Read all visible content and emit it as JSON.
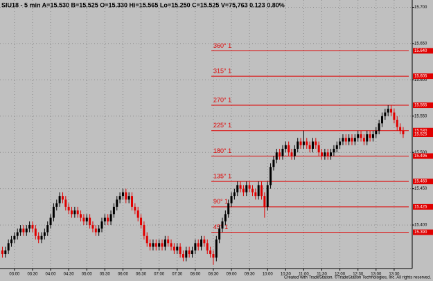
{
  "chart_data": {
    "type": "candlestick",
    "title": "SIU18 - 5 min  A=15.530  B=15.525  O=15.330  Hi=15.565  Lo=15.250  C=15.525  V=75,763  0.123  0.80%",
    "footer": "Created with TradeStation. ©TradeStation Technologies, Inc. All rights reserved.",
    "up_color": "#000000",
    "down_color": "#e00000",
    "level_color": "#e00000",
    "grid": true,
    "xlim": [
      156,
      840
    ],
    "ylim": [
      15.34,
      15.71
    ],
    "xticks": [
      {
        "value": 180,
        "label": "03:00"
      },
      {
        "value": 210,
        "label": "03:30"
      },
      {
        "value": 240,
        "label": "04:00"
      },
      {
        "value": 270,
        "label": "04:30"
      },
      {
        "value": 300,
        "label": "05:00"
      },
      {
        "value": 330,
        "label": "05:30"
      },
      {
        "value": 360,
        "label": "06:00"
      },
      {
        "value": 390,
        "label": "06:30"
      },
      {
        "value": 420,
        "label": "07:00"
      },
      {
        "value": 450,
        "label": "07:30"
      },
      {
        "value": 480,
        "label": "08:00"
      },
      {
        "value": 510,
        "label": "08:30"
      },
      {
        "value": 540,
        "label": "09:00"
      },
      {
        "value": 570,
        "label": "09:30"
      },
      {
        "value": 600,
        "label": "10:00"
      },
      {
        "value": 630,
        "label": "10:30"
      },
      {
        "value": 660,
        "label": "11:00"
      },
      {
        "value": 690,
        "label": "11:30"
      },
      {
        "value": 720,
        "label": "12:00"
      },
      {
        "value": 750,
        "label": "12:30"
      },
      {
        "value": 780,
        "label": "13:00"
      },
      {
        "value": 810,
        "label": "13:30"
      }
    ],
    "yticks": [
      {
        "value": 15.4,
        "label": "15.400"
      },
      {
        "value": 15.45,
        "label": "15.450"
      },
      {
        "value": 15.5,
        "label": "15.500"
      },
      {
        "value": 15.55,
        "label": "15.550"
      },
      {
        "value": 15.6,
        "label": "15.600"
      },
      {
        "value": 15.65,
        "label": "15.650"
      },
      {
        "value": 15.7,
        "label": "15.700"
      }
    ],
    "levels": [
      {
        "name": "360° 1",
        "value": 15.64,
        "value_label": "15.640"
      },
      {
        "name": "315° 1",
        "value": 15.605,
        "value_label": "15.605"
      },
      {
        "name": "270° 1",
        "value": 15.565,
        "value_label": "15.565"
      },
      {
        "name": "225° 1",
        "value": 15.53,
        "value_label": "15.530"
      },
      {
        "name": "180° 1",
        "value": 15.495,
        "value_label": "15.495"
      },
      {
        "name": "135° 1",
        "value": 15.46,
        "value_label": "15.460"
      },
      {
        "name": "90° 1",
        "value": 15.425,
        "value_label": "15.425"
      },
      {
        "name": "45° 1",
        "value": 15.39,
        "value_label": "15.390"
      }
    ],
    "candles": [
      [
        160,
        15.365,
        15.37,
        15.355,
        15.36
      ],
      [
        165,
        15.36,
        15.37,
        15.355,
        15.365
      ],
      [
        170,
        15.365,
        15.38,
        15.36,
        15.375
      ],
      [
        175,
        15.375,
        15.385,
        15.37,
        15.38
      ],
      [
        180,
        15.38,
        15.39,
        15.375,
        15.385
      ],
      [
        185,
        15.385,
        15.395,
        15.38,
        15.39
      ],
      [
        190,
        15.39,
        15.4,
        15.385,
        15.395
      ],
      [
        195,
        15.395,
        15.4,
        15.385,
        15.39
      ],
      [
        200,
        15.39,
        15.4,
        15.385,
        15.395
      ],
      [
        205,
        15.395,
        15.405,
        15.39,
        15.4
      ],
      [
        210,
        15.4,
        15.405,
        15.39,
        15.395
      ],
      [
        215,
        15.395,
        15.4,
        15.38,
        15.385
      ],
      [
        220,
        15.385,
        15.39,
        15.375,
        15.38
      ],
      [
        225,
        15.38,
        15.39,
        15.375,
        15.385
      ],
      [
        230,
        15.385,
        15.395,
        15.38,
        15.39
      ],
      [
        235,
        15.39,
        15.405,
        15.385,
        15.4
      ],
      [
        240,
        15.4,
        15.415,
        15.395,
        15.41
      ],
      [
        245,
        15.41,
        15.43,
        15.405,
        15.425
      ],
      [
        250,
        15.425,
        15.435,
        15.42,
        15.43
      ],
      [
        255,
        15.43,
        15.445,
        15.425,
        15.44
      ],
      [
        260,
        15.44,
        15.445,
        15.43,
        15.435
      ],
      [
        265,
        15.435,
        15.44,
        15.42,
        15.425
      ],
      [
        270,
        15.425,
        15.43,
        15.415,
        15.42
      ],
      [
        275,
        15.42,
        15.425,
        15.41,
        15.415
      ],
      [
        280,
        15.415,
        15.425,
        15.41,
        15.42
      ],
      [
        285,
        15.42,
        15.425,
        15.41,
        15.415
      ],
      [
        290,
        15.415,
        15.42,
        15.405,
        15.41
      ],
      [
        295,
        15.41,
        15.415,
        15.4,
        15.405
      ],
      [
        300,
        15.405,
        15.415,
        15.4,
        15.41
      ],
      [
        305,
        15.41,
        15.415,
        15.395,
        15.4
      ],
      [
        310,
        15.4,
        15.405,
        15.39,
        15.395
      ],
      [
        315,
        15.395,
        15.4,
        15.385,
        15.39
      ],
      [
        320,
        15.39,
        15.4,
        15.385,
        15.395
      ],
      [
        325,
        15.395,
        15.41,
        15.39,
        15.405
      ],
      [
        330,
        15.405,
        15.415,
        15.4,
        15.41
      ],
      [
        335,
        15.41,
        15.415,
        15.4,
        15.405
      ],
      [
        340,
        15.405,
        15.42,
        15.4,
        15.415
      ],
      [
        345,
        15.415,
        15.43,
        15.41,
        15.425
      ],
      [
        350,
        15.425,
        15.44,
        15.42,
        15.435
      ],
      [
        355,
        15.435,
        15.445,
        15.43,
        15.44
      ],
      [
        360,
        15.44,
        15.45,
        15.435,
        15.445
      ],
      [
        365,
        15.445,
        15.45,
        15.43,
        15.435
      ],
      [
        370,
        15.435,
        15.445,
        15.43,
        15.44
      ],
      [
        375,
        15.44,
        15.445,
        15.42,
        15.425
      ],
      [
        380,
        15.425,
        15.43,
        15.415,
        15.42
      ],
      [
        385,
        15.42,
        15.425,
        15.405,
        15.41
      ],
      [
        390,
        15.41,
        15.415,
        15.395,
        15.4
      ],
      [
        395,
        15.4,
        15.405,
        15.38,
        15.385
      ],
      [
        400,
        15.385,
        15.39,
        15.37,
        15.375
      ],
      [
        405,
        15.375,
        15.38,
        15.365,
        15.37
      ],
      [
        410,
        15.37,
        15.38,
        15.365,
        15.375
      ],
      [
        415,
        15.375,
        15.38,
        15.365,
        15.37
      ],
      [
        420,
        15.37,
        15.38,
        15.365,
        15.375
      ],
      [
        425,
        15.375,
        15.38,
        15.365,
        15.37
      ],
      [
        430,
        15.37,
        15.385,
        15.365,
        15.38
      ],
      [
        435,
        15.38,
        15.385,
        15.37,
        15.375
      ],
      [
        440,
        15.375,
        15.38,
        15.365,
        15.37
      ],
      [
        445,
        15.37,
        15.375,
        15.36,
        15.365
      ],
      [
        450,
        15.365,
        15.375,
        15.36,
        15.37
      ],
      [
        455,
        15.37,
        15.375,
        15.355,
        15.36
      ],
      [
        460,
        15.36,
        15.365,
        15.35,
        15.355
      ],
      [
        465,
        15.355,
        15.37,
        15.35,
        15.365
      ],
      [
        470,
        15.365,
        15.37,
        15.355,
        15.36
      ],
      [
        475,
        15.36,
        15.37,
        15.355,
        15.365
      ],
      [
        480,
        15.365,
        15.38,
        15.36,
        15.375
      ],
      [
        485,
        15.375,
        15.38,
        15.365,
        15.37
      ],
      [
        490,
        15.37,
        15.385,
        15.365,
        15.38
      ],
      [
        495,
        15.38,
        15.385,
        15.37,
        15.375
      ],
      [
        500,
        15.375,
        15.38,
        15.36,
        15.365
      ],
      [
        505,
        15.365,
        15.37,
        15.355,
        15.36
      ],
      [
        510,
        15.36,
        15.365,
        15.345,
        15.355
      ],
      [
        515,
        15.355,
        15.385,
        15.35,
        15.38
      ],
      [
        520,
        15.38,
        15.4,
        15.375,
        15.395
      ],
      [
        525,
        15.395,
        15.41,
        15.39,
        15.405
      ],
      [
        530,
        15.405,
        15.42,
        15.4,
        15.415
      ],
      [
        535,
        15.415,
        15.435,
        15.41,
        15.43
      ],
      [
        540,
        15.43,
        15.445,
        15.425,
        15.44
      ],
      [
        545,
        15.44,
        15.45,
        15.435,
        15.445
      ],
      [
        550,
        15.445,
        15.46,
        15.44,
        15.455
      ],
      [
        555,
        15.455,
        15.46,
        15.445,
        15.45
      ],
      [
        560,
        15.45,
        15.455,
        15.44,
        15.445
      ],
      [
        565,
        15.445,
        15.46,
        15.44,
        15.455
      ],
      [
        570,
        15.455,
        15.46,
        15.445,
        15.45
      ],
      [
        575,
        15.45,
        15.455,
        15.44,
        15.445
      ],
      [
        580,
        15.445,
        15.45,
        15.435,
        15.44
      ],
      [
        585,
        15.44,
        15.46,
        15.435,
        15.455
      ],
      [
        590,
        15.455,
        15.46,
        15.435,
        15.44
      ],
      [
        595,
        15.44,
        15.445,
        15.41,
        15.425
      ],
      [
        600,
        15.425,
        15.46,
        15.42,
        15.455
      ],
      [
        605,
        15.455,
        15.485,
        15.45,
        15.48
      ],
      [
        610,
        15.48,
        15.495,
        15.475,
        15.49
      ],
      [
        615,
        15.49,
        15.505,
        15.485,
        15.5
      ],
      [
        620,
        15.5,
        15.505,
        15.49,
        15.495
      ],
      [
        625,
        15.495,
        15.51,
        15.49,
        15.505
      ],
      [
        630,
        15.505,
        15.515,
        15.5,
        15.51
      ],
      [
        635,
        15.51,
        15.515,
        15.495,
        15.5
      ],
      [
        640,
        15.5,
        15.505,
        15.49,
        15.495
      ],
      [
        645,
        15.495,
        15.51,
        15.49,
        15.505
      ],
      [
        650,
        15.505,
        15.52,
        15.5,
        15.515
      ],
      [
        655,
        15.515,
        15.52,
        15.505,
        15.51
      ],
      [
        660,
        15.51,
        15.53,
        15.505,
        15.515
      ],
      [
        665,
        15.515,
        15.52,
        15.505,
        15.51
      ],
      [
        670,
        15.51,
        15.515,
        15.5,
        15.505
      ],
      [
        675,
        15.505,
        15.52,
        15.5,
        15.515
      ],
      [
        680,
        15.515,
        15.52,
        15.505,
        15.51
      ],
      [
        685,
        15.51,
        15.515,
        15.495,
        15.5
      ],
      [
        690,
        15.5,
        15.505,
        15.49,
        15.495
      ],
      [
        695,
        15.495,
        15.505,
        15.49,
        15.5
      ],
      [
        700,
        15.5,
        15.505,
        15.49,
        15.495
      ],
      [
        705,
        15.495,
        15.505,
        15.49,
        15.5
      ],
      [
        710,
        15.5,
        15.51,
        15.495,
        15.505
      ],
      [
        715,
        15.505,
        15.515,
        15.5,
        15.51
      ],
      [
        720,
        15.51,
        15.52,
        15.505,
        15.515
      ],
      [
        725,
        15.515,
        15.525,
        15.51,
        15.52
      ],
      [
        730,
        15.52,
        15.525,
        15.51,
        15.515
      ],
      [
        735,
        15.515,
        15.525,
        15.51,
        15.52
      ],
      [
        740,
        15.52,
        15.525,
        15.51,
        15.515
      ],
      [
        745,
        15.515,
        15.525,
        15.51,
        15.52
      ],
      [
        750,
        15.52,
        15.53,
        15.515,
        15.525
      ],
      [
        755,
        15.525,
        15.53,
        15.515,
        15.52
      ],
      [
        760,
        15.52,
        15.525,
        15.51,
        15.515
      ],
      [
        765,
        15.515,
        15.53,
        15.51,
        15.525
      ],
      [
        770,
        15.525,
        15.53,
        15.515,
        15.52
      ],
      [
        775,
        15.52,
        15.53,
        15.515,
        15.525
      ],
      [
        780,
        15.525,
        15.535,
        15.52,
        15.53
      ],
      [
        785,
        15.53,
        15.545,
        15.525,
        15.54
      ],
      [
        790,
        15.54,
        15.555,
        15.535,
        15.55
      ],
      [
        795,
        15.55,
        15.56,
        15.545,
        15.555
      ],
      [
        800,
        15.555,
        15.565,
        15.55,
        15.56
      ],
      [
        805,
        15.56,
        15.565,
        15.55,
        15.555
      ],
      [
        810,
        15.555,
        15.56,
        15.54,
        15.545
      ],
      [
        815,
        15.545,
        15.55,
        15.53,
        15.535
      ],
      [
        820,
        15.535,
        15.54,
        15.525,
        15.53
      ],
      [
        825,
        15.53,
        15.535,
        15.52,
        15.525
      ]
    ]
  }
}
